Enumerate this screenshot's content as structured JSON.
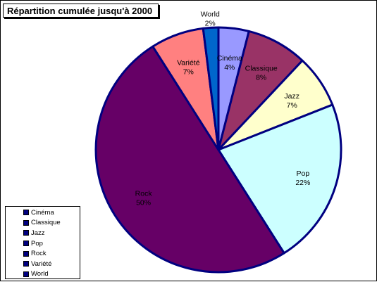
{
  "chart_data": {
    "type": "pie",
    "title": "Répartition cumulée jusqu'à 2000",
    "legend_position": "bottom-left",
    "slices": [
      {
        "name": "Cinéma",
        "value": 4,
        "label": "4%",
        "color": "#9999ff"
      },
      {
        "name": "Classique",
        "value": 8,
        "label": "8%",
        "color": "#993366"
      },
      {
        "name": "Jazz",
        "value": 7,
        "label": "7%",
        "color": "#ffffcc"
      },
      {
        "name": "Pop",
        "value": 22,
        "label": "22%",
        "color": "#ccffff"
      },
      {
        "name": "Rock",
        "value": 50,
        "label": "50%",
        "color": "#660066"
      },
      {
        "name": "Variété",
        "value": 7,
        "label": "7%",
        "color": "#ff8080"
      },
      {
        "name": "World",
        "value": 2,
        "label": "2%",
        "color": "#0066cc"
      }
    ],
    "legend_marker_color": "#000080",
    "slice_border_color": "#000080"
  }
}
